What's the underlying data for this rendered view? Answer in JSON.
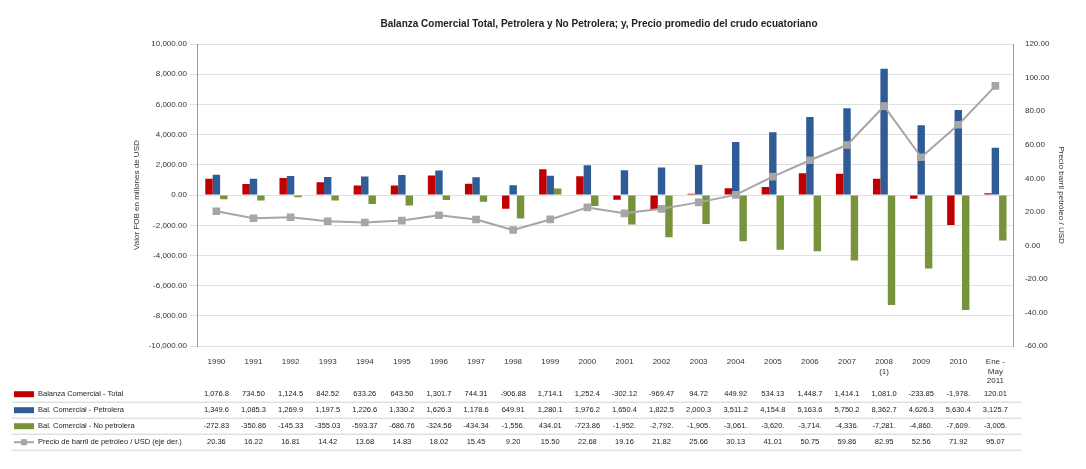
{
  "chart_data": {
    "type": "bar",
    "title": "Balanza Comercial Total, Petrolera y No Petrolera; y, Precio promedio del crudo ecuatoriano",
    "ylabel": "Valor FOB en millones de USD",
    "y2label": "Precio barril petróleo / USD",
    "categories": [
      "1990",
      "1991",
      "1992",
      "1993",
      "1994",
      "1995",
      "1996",
      "1997",
      "1998",
      "1999",
      "2000",
      "2001",
      "2002",
      "2003",
      "2004",
      "2005",
      "2006",
      "2007",
      "2008 (1)",
      "2009",
      "2010",
      "Ene - May 2011"
    ],
    "series": [
      {
        "name": "Balanza Comercial - Total",
        "color": "#c00000",
        "values": [
          1076.8,
          734.5,
          1124.5,
          842.52,
          633.26,
          643.5,
          1301.7,
          744.31,
          -906.88,
          1714.1,
          1252.4,
          -302.12,
          -969.47,
          94.72,
          449.92,
          534.13,
          1448.7,
          1414.1,
          1081.0,
          -233.85,
          -1978,
          120.01
        ],
        "value_labels": [
          "1,076.8",
          "734.50",
          "1,124.5",
          "842.52",
          "633.26",
          "643.50",
          "1,301.7",
          "744.31",
          "-906.88",
          "1,714.1",
          "1,252.4",
          "-302.12",
          "-969.47",
          "94.72",
          "449.92",
          "534.13",
          "1,448.7",
          "1,414.1",
          "1,081.0",
          "-233.85",
          "-1,978.",
          "120.01"
        ]
      },
      {
        "name": "Bal. Comercial - Petrolera",
        "color": "#2f5b96",
        "values": [
          1349.6,
          1085.3,
          1269.9,
          1197.5,
          1226.6,
          1330.2,
          1626.3,
          1178.6,
          649.91,
          1280.1,
          1976.2,
          1650.4,
          1822.5,
          2000.3,
          3511.2,
          4154.8,
          5163.6,
          5750.2,
          8362.7,
          4626.3,
          5630.4,
          3125.7
        ],
        "value_labels": [
          "1,349.6",
          "1,085.3",
          "1,269.9",
          "1,197.5",
          "1,226.6",
          "1,330.2",
          "1,626.3",
          "1,178.6",
          "649.91",
          "1,280.1",
          "1,976.2",
          "1,650.4",
          "1,822.5",
          "2,000.3",
          "3,511.2",
          "4,154.8",
          "5,163.6",
          "5,750.2",
          "8,362.7",
          "4,626.3",
          "5,630.4",
          "3,125.7"
        ]
      },
      {
        "name": "Bal. Comercial - No petrolera",
        "color": "#77933c",
        "values": [
          -272.83,
          -350.86,
          -145.33,
          -355.03,
          -593.37,
          -686.76,
          -324.56,
          -434.34,
          -1556,
          434.01,
          -723.86,
          -1952,
          -2792,
          -1905,
          -3061,
          -3620,
          -3714,
          -4336,
          -7281,
          -4860,
          -7609,
          -3005
        ],
        "value_labels": [
          "-272.83",
          "-350.86",
          "-145.33",
          "-355.03",
          "-593.37",
          "-686.76",
          "-324.56",
          "-434.34",
          "-1,556.",
          "434.01",
          "-723.86",
          "-1,952.",
          "-2,792.",
          "-1,905.",
          "-3,061.",
          "-3,620.",
          "-3,714.",
          "-4,336.",
          "-7,281.",
          "-4,860.",
          "-7,609.",
          "-3,005."
        ]
      },
      {
        "name": "Precio de barril de petróleo / USD (eje der.)",
        "type": "line",
        "axis": "y2",
        "color": "#a6a6a6",
        "marker": "square",
        "values": [
          20.36,
          16.22,
          16.81,
          14.42,
          13.68,
          14.83,
          18.02,
          15.45,
          9.2,
          15.5,
          22.68,
          19.16,
          21.82,
          25.66,
          30.13,
          41.01,
          50.75,
          59.86,
          82.95,
          52.56,
          71.92,
          95.07
        ],
        "value_labels": [
          "20.36",
          "16.22",
          "16.81",
          "14.42",
          "13.68",
          "14.83",
          "18.02",
          "15.45",
          "9.20",
          "15.50",
          "22.68",
          "19.16",
          "21.82",
          "25.66",
          "30.13",
          "41.01",
          "50.75",
          "59.86",
          "82.95",
          "52.56",
          "71.92",
          "95.07"
        ]
      }
    ],
    "ylim": [
      -10000,
      10000
    ],
    "yticks": [
      {
        "value": -10000,
        "label": "-10,000.00"
      },
      {
        "value": -8000,
        "label": "-8,000.00"
      },
      {
        "value": -6000,
        "label": "-6,000.00"
      },
      {
        "value": -4000,
        "label": "-4,000.00"
      },
      {
        "value": -2000,
        "label": "-2,000.00"
      },
      {
        "value": 0,
        "label": "0.00"
      },
      {
        "value": 2000,
        "label": "2,000.00"
      },
      {
        "value": 4000,
        "label": "4,000.00"
      },
      {
        "value": 6000,
        "label": "6,000.00"
      },
      {
        "value": 8000,
        "label": "8,000.00"
      },
      {
        "value": 10000,
        "label": "10,000.00"
      }
    ],
    "y2lim": [
      -60,
      120
    ],
    "y2ticks": [
      {
        "value": -60,
        "label": "-60.00"
      },
      {
        "value": -40,
        "label": "-40.00"
      },
      {
        "value": -20,
        "label": "-20.00"
      },
      {
        "value": 0,
        "label": "0.00"
      },
      {
        "value": 20,
        "label": "20.00"
      },
      {
        "value": 40,
        "label": "40.00"
      },
      {
        "value": 60,
        "label": "60.00"
      },
      {
        "value": 80,
        "label": "80.00"
      },
      {
        "value": 100,
        "label": "100.00"
      },
      {
        "value": 120,
        "label": "120.00"
      }
    ],
    "grid": "y",
    "legend": "bottom"
  }
}
